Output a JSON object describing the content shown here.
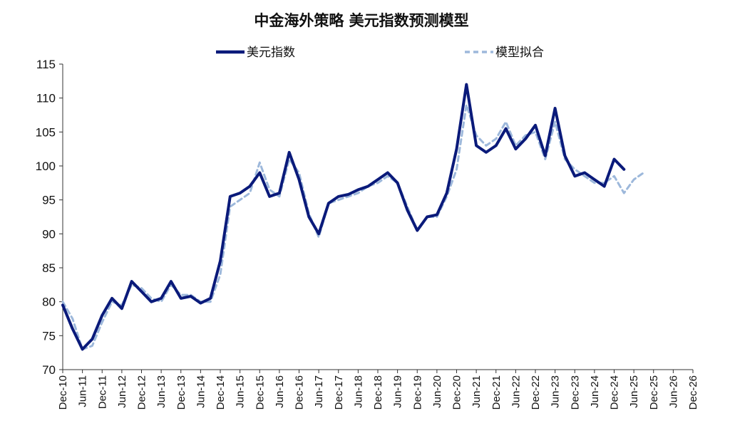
{
  "chart_data": {
    "type": "line",
    "title": "中金海外策略 美元指数预测模型",
    "xlabel": "",
    "ylabel": "",
    "ylim": [
      70,
      115
    ],
    "yticks": [
      70,
      75,
      80,
      85,
      90,
      95,
      100,
      105,
      110,
      115
    ],
    "xticks": [
      "Dec-10",
      "Jun-11",
      "Dec-11",
      "Jun-12",
      "Dec-12",
      "Jun-13",
      "Dec-13",
      "Jun-14",
      "Dec-14",
      "Jun-15",
      "Dec-15",
      "Jun-16",
      "Dec-16",
      "Jun-17",
      "Dec-17",
      "Jun-18",
      "Dec-18",
      "Jun-19",
      "Dec-19",
      "Jun-20",
      "Dec-20",
      "Jun-21",
      "Dec-21",
      "Jun-22",
      "Dec-22",
      "Jun-23",
      "Dec-23",
      "Jun-24",
      "Dec-24",
      "Jun-25",
      "Dec-25",
      "Jun-26",
      "Dec-26"
    ],
    "grid": false,
    "legend_position": "top",
    "x_step": "quarter",
    "series": [
      {
        "name": "美元指数",
        "color": "#0a1a7a",
        "style": "solid",
        "values": [
          79.5,
          76.0,
          73.0,
          74.5,
          78.0,
          80.5,
          79.0,
          83.0,
          81.5,
          80.0,
          80.5,
          83.0,
          80.5,
          80.8,
          79.8,
          80.5,
          86.0,
          95.5,
          96.0,
          97.0,
          99.0,
          95.5,
          96.0,
          102.0,
          98.0,
          92.5,
          90.0,
          94.5,
          95.5,
          95.8,
          96.5,
          97.0,
          98.0,
          99.0,
          97.5,
          93.5,
          90.5,
          92.5,
          92.8,
          96.0,
          102.5,
          112.0,
          103.0,
          102.0,
          103.0,
          105.5,
          102.5,
          104.0,
          106.0,
          101.5,
          108.5,
          101.5,
          98.5,
          99.0,
          98.0,
          97.0,
          101.0,
          99.5
        ]
      },
      {
        "name": "模型拟合",
        "color": "#9db8db",
        "style": "dashed",
        "values": [
          80.0,
          77.5,
          73.0,
          73.5,
          77.0,
          80.0,
          79.5,
          82.5,
          82.0,
          80.5,
          80.0,
          82.5,
          81.0,
          81.0,
          80.0,
          80.0,
          84.0,
          94.0,
          95.0,
          96.0,
          100.5,
          96.5,
          95.5,
          101.0,
          99.0,
          93.0,
          89.5,
          94.5,
          95.0,
          95.5,
          96.0,
          97.0,
          97.5,
          98.5,
          97.5,
          94.0,
          90.5,
          92.5,
          92.5,
          95.5,
          99.5,
          109.0,
          104.5,
          103.0,
          104.0,
          106.5,
          103.0,
          104.5,
          105.0,
          101.0,
          106.5,
          101.0,
          99.5,
          98.5,
          97.5,
          97.5,
          98.5,
          96.0,
          98.0,
          99.0
        ]
      }
    ]
  }
}
